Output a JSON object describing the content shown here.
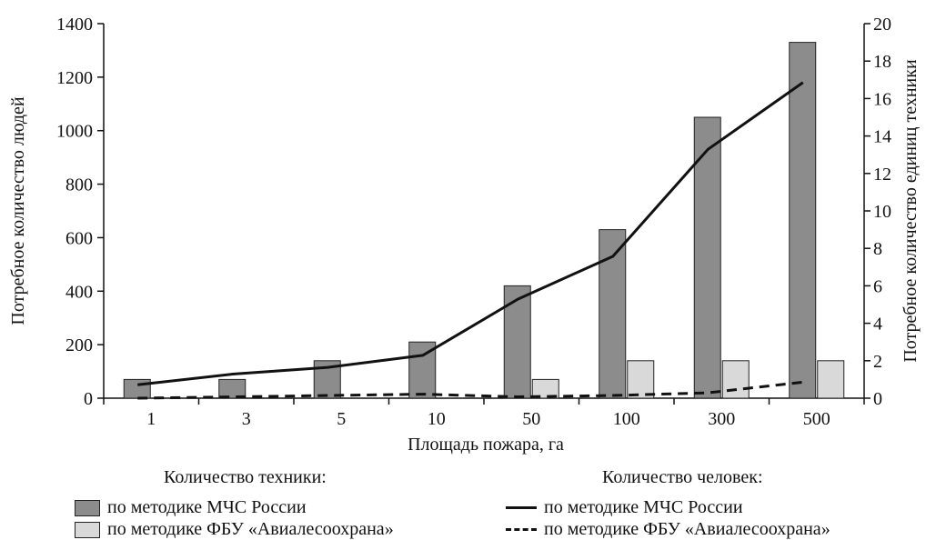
{
  "chart_data": {
    "type": "bar+line",
    "xlabel": "Площадь пожара, га",
    "ylabel_left": "Потребное количество людей",
    "ylabel_right": "Потребное количество единиц техники",
    "categories": [
      "1",
      "3",
      "5",
      "10",
      "50",
      "100",
      "300",
      "500"
    ],
    "ylim_left": [
      0,
      1400
    ],
    "yticks_left": [
      "0",
      "200",
      "400",
      "600",
      "800",
      "1000",
      "1200",
      "1400"
    ],
    "ylim_right": [
      0,
      20
    ],
    "yticks_right": [
      "0",
      "2",
      "4",
      "6",
      "8",
      "10",
      "12",
      "14",
      "16",
      "18",
      "20"
    ],
    "bar_series": [
      {
        "name": "по методике МЧС России",
        "axis": "right",
        "color": "#8c8c8c",
        "values": [
          1,
          1,
          2,
          3,
          6,
          9,
          15,
          19
        ]
      },
      {
        "name": "по методике ФБУ «Авиалесоохрана»",
        "axis": "right",
        "color": "#d9d9d9",
        "values": [
          0,
          0,
          0,
          0,
          1,
          2,
          2,
          2
        ]
      }
    ],
    "line_series": [
      {
        "name": "по методике МЧС России",
        "axis": "left",
        "style": "solid",
        "values": [
          50,
          90,
          115,
          160,
          370,
          530,
          930,
          1180
        ]
      },
      {
        "name": "по методике ФБУ «Авиалесоохрана»",
        "axis": "left",
        "style": "dashed",
        "values": [
          0,
          5,
          10,
          15,
          5,
          10,
          20,
          60
        ]
      }
    ],
    "legend": {
      "bars_heading": "Количество техники:",
      "lines_heading": "Количество человек:",
      "bar_items": [
        "по методике МЧС России",
        "по методике ФБУ «Авиалесоохрана»"
      ],
      "line_items": [
        "по методике МЧС России",
        "по методике ФБУ «Авиалесоохрана»"
      ]
    }
  }
}
